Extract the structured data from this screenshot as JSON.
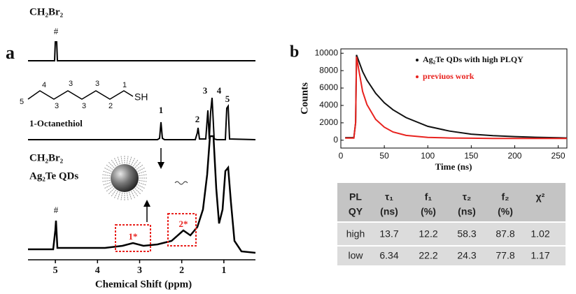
{
  "panels": [
    "a",
    "b"
  ],
  "chart_data": [
    {
      "type": "nmr",
      "xlabel": "Chemical Shift (ppm)",
      "xlim": [
        5.65,
        0.25
      ],
      "xticks": [
        5,
        4,
        3,
        2,
        1
      ],
      "annotations": [
        "CH₂Br₂",
        "#",
        "1-Octanethiol",
        "1",
        "2",
        "3",
        "4",
        "5",
        "CH₂Br₂",
        "Ag₂Te QDs",
        "#",
        "1*",
        "2*"
      ],
      "molecule": [
        "5",
        "4",
        "3",
        "3",
        "3",
        "3",
        "2",
        "1",
        "SH"
      ]
    },
    {
      "type": "line",
      "ylabel": "Counts",
      "xlabel": "Time (ns)",
      "xlim": [
        0,
        260
      ],
      "ylim": [
        -900,
        10500
      ],
      "xticks": [
        0,
        50,
        100,
        150,
        200,
        250
      ],
      "yticks": [
        0,
        2000,
        4000,
        6000,
        8000,
        10000
      ],
      "legend": "upper right",
      "x": [
        5,
        15,
        17,
        18,
        25,
        30,
        40,
        50,
        60,
        75,
        100,
        125,
        150,
        175,
        200,
        225,
        250,
        260
      ],
      "series": [
        {
          "name": "Ag₂Te QDs with high PLQY",
          "color": "#111111",
          "values": [
            300,
            300,
            2000,
            9800,
            7900,
            6900,
            5400,
            4300,
            3500,
            2600,
            1600,
            1050,
            700,
            520,
            420,
            340,
            280,
            260
          ]
        },
        {
          "name": "previuos work",
          "color": "#e8231f",
          "values": [
            250,
            250,
            2000,
            9600,
            5600,
            4100,
            2400,
            1500,
            950,
            550,
            330,
            260,
            230,
            210,
            200,
            200,
            200,
            200
          ]
        }
      ]
    }
  ],
  "table": {
    "header": [
      [
        "PL",
        "QY"
      ],
      [
        "τ₁",
        "(ns)"
      ],
      [
        "f₁",
        "(%)"
      ],
      [
        "τ₂",
        "(ns)"
      ],
      [
        "f₂",
        "(%)"
      ],
      [
        "χ²"
      ]
    ],
    "rows": [
      [
        "high",
        13.7,
        12.2,
        58.3,
        87.8,
        1.02
      ],
      [
        "low",
        6.34,
        22.2,
        24.3,
        77.8,
        1.17
      ]
    ]
  }
}
